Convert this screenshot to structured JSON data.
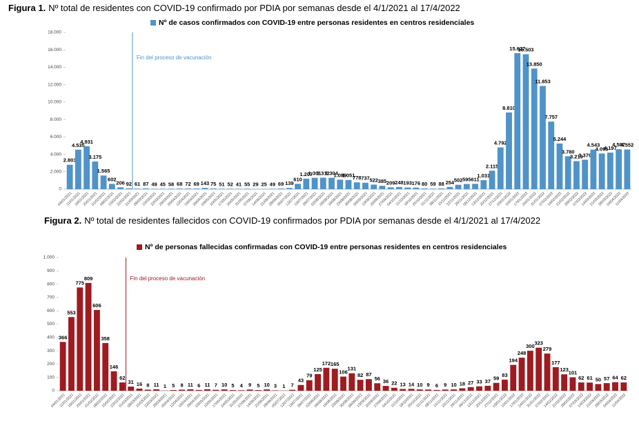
{
  "chart_data": [
    {
      "type": "bar",
      "figure_label": "Figura 1.",
      "title": "Nº total de residentes con COVID-19 confirmado por PDIA por semanas desde el 4/1/2021 al 17/4/2022",
      "annotation": "Fin del proceso de vacunación",
      "categories": [
        "04/01/2021",
        "11/01/2021",
        "18/01/2021",
        "25/01/2021",
        "01/02/2021",
        "08/02/2021",
        "15/02/2021",
        "22/02/2021",
        "01/03/2021",
        "08/03/2021",
        "15/03/2021",
        "22/03/2021",
        "29/03/2021",
        "05/04/2021",
        "12/04/2021",
        "19/04/2021",
        "26/04/2021",
        "03/05/2021",
        "10/05/2021",
        "17/05/2021",
        "24/05/2021",
        "31/05/2021",
        "07/06/2021",
        "14/06/2021",
        "21/06/2021",
        "28/06/2021",
        "05/07/2021",
        "12/07/2021",
        "19/07/2021",
        "26/07/2021",
        "02/08/2021",
        "09/08/2021",
        "16/08/2021",
        "23/08/2021",
        "30/08/2021",
        "06/09/2021",
        "13/09/2021",
        "20/09/2021",
        "27/09/2021",
        "04/10/2021",
        "11/10/2021",
        "18/10/2021",
        "25/10/2021",
        "01/11/2021",
        "08/11/2021",
        "15/11/2021",
        "22/11/2021",
        "29/11/2021",
        "06/12/2021",
        "13/12/2021",
        "20/12/2021",
        "27/12/2021",
        "03/01/2022",
        "10/01/2022",
        "17/01/2022",
        "24/01/2022",
        "31/01/2022",
        "07/02/2022",
        "14/02/2022",
        "21/02/2022",
        "28/02/2022",
        "07/03/2022",
        "14/03/2022",
        "21/03/2022",
        "28/03/2022",
        "04/04/2022",
        "11/04/2022"
      ],
      "series": [
        {
          "name": "Nº de casos confirmados con COVID-19 entre personas residentes en centros residenciales",
          "color": "#4f93c9",
          "values": [
            2803,
            4535,
            4931,
            3175,
            1565,
            602,
            206,
            92,
            61,
            87,
            49,
            45,
            58,
            68,
            72,
            69,
            143,
            75,
            51,
            52,
            41,
            55,
            29,
            25,
            49,
            69,
            139,
            610,
            1207,
            1301,
            1312,
            1304,
            1089,
            1051,
            778,
            737,
            522,
            385,
            209,
            248,
            193,
            176,
            80,
            59,
            88,
            254,
            502,
            595,
            611,
            1031,
            2115,
            4792,
            8810,
            15627,
            15503,
            13850,
            11853,
            7757,
            5244,
            3780,
            3219,
            3379,
            4543,
            4095,
            4197,
            4587,
            4552
          ],
          "value_labels": [
            "2.803",
            "4.535",
            "4.931",
            "3.175",
            "1.565",
            "602",
            "206",
            "92",
            "61",
            "87",
            "49",
            "45",
            "58",
            "68",
            "72",
            "69",
            "143",
            "75",
            "51",
            "52",
            "41",
            "55",
            "29",
            "25",
            "49",
            "69",
            "139",
            "610",
            "1.207",
            "1.301",
            "1.312",
            "1.304",
            "1.089",
            "1.051",
            "778",
            "737",
            "522",
            "385",
            "209",
            "248",
            "193",
            "176",
            "80",
            "59",
            "88",
            "254",
            "502",
            "595",
            "611",
            "1.031",
            "2.115",
            "4.792",
            "8.810",
            "15.627",
            "15.503",
            "13.850",
            "11.853",
            "7.757",
            "5.244",
            "3.780",
            "3.219",
            "3.379",
            "4.543",
            "4.095",
            "4.197",
            "4.587",
            "4.552"
          ]
        }
      ],
      "ylim": [
        0,
        18000
      ],
      "yticks": [
        0,
        {
          "value": 2000,
          "label": "2.000"
        },
        {
          "value": 4000,
          "label": "4.000"
        },
        {
          "value": 6000,
          "label": "6.000"
        },
        {
          "value": 8000,
          "label": "8.000"
        },
        {
          "value": 10000,
          "label": "10.000"
        },
        {
          "value": 12000,
          "label": "12.000"
        },
        {
          "value": 14000,
          "label": "14.000"
        },
        {
          "value": 16000,
          "label": "16.000"
        },
        {
          "value": 18000,
          "label": "18.000"
        }
      ]
    },
    {
      "type": "bar",
      "figure_label": "Figura 2.",
      "title": "Nº total de residentes fallecidos con COVID-19 confirmados por PDIA por semanas desde el 4/1/2021 al 17/4/2022",
      "annotation": "Fin del proceso de vacunación",
      "categories": [
        "04/01/2021",
        "11/01/2021",
        "18/01/2021",
        "25/01/2021",
        "01/02/2021",
        "08/02/2021",
        "15/02/2021",
        "22/02/2021",
        "01/03/2021",
        "08/03/2021",
        "15/03/2021",
        "22/03/2021",
        "29/03/2021",
        "05/04/2021",
        "12/04/2021",
        "19/04/2021",
        "26/04/2021",
        "03/05/2021",
        "10/05/2021",
        "17/05/2021",
        "24/05/2021",
        "31/05/2021",
        "07/06/2021",
        "14/06/2021",
        "21/06/2021",
        "28/06/2021",
        "05/07/2021",
        "12/07/2021",
        "19/07/2021",
        "26/07/2021",
        "02/08/2021",
        "09/08/2021",
        "16/08/2021",
        "23/08/2021",
        "30/08/2021",
        "06/09/2021",
        "13/09/2021",
        "20/09/2021",
        "27/09/2021",
        "04/10/2021",
        "11/10/2021",
        "18/10/2021",
        "25/10/2021",
        "01/11/2021",
        "08/11/2021",
        "15/11/2021",
        "22/11/2021",
        "29/11/2021",
        "06/12/2021",
        "13/12/2021",
        "20/12/2021",
        "27/12/2021",
        "03/01/2022",
        "10/01/2022",
        "17/01/2022",
        "24/01/2022",
        "31/01/2022",
        "07/02/2022",
        "14/02/2022",
        "21/02/2022",
        "28/02/2022",
        "07/03/2022",
        "14/03/2022",
        "21/03/2022",
        "28/03/2022",
        "04/04/2022",
        "11/04/2022"
      ],
      "series": [
        {
          "name": "Nº de personas fallecidas confirmadas con COVID-19 entre personas residentes en centros residenciales",
          "color": "#9e1b20",
          "values": [
            366,
            553,
            775,
            809,
            606,
            358,
            146,
            62,
            31,
            16,
            8,
            11,
            1,
            5,
            8,
            11,
            6,
            11,
            7,
            10,
            5,
            4,
            9,
            5,
            10,
            3,
            1,
            7,
            43,
            79,
            125,
            172,
            165,
            106,
            131,
            82,
            87,
            56,
            36,
            22,
            13,
            14,
            10,
            9,
            6,
            9,
            10,
            18,
            27,
            33,
            37,
            59,
            83,
            194,
            248,
            300,
            323,
            279,
            177,
            123,
            101,
            62,
            61,
            50,
            57,
            64,
            62
          ]
        }
      ],
      "ylim": [
        0,
        1000
      ],
      "yticks": [
        0,
        100,
        200,
        300,
        400,
        500,
        600,
        700,
        800,
        900,
        {
          "value": 1000,
          "label": "1.000"
        }
      ]
    }
  ]
}
